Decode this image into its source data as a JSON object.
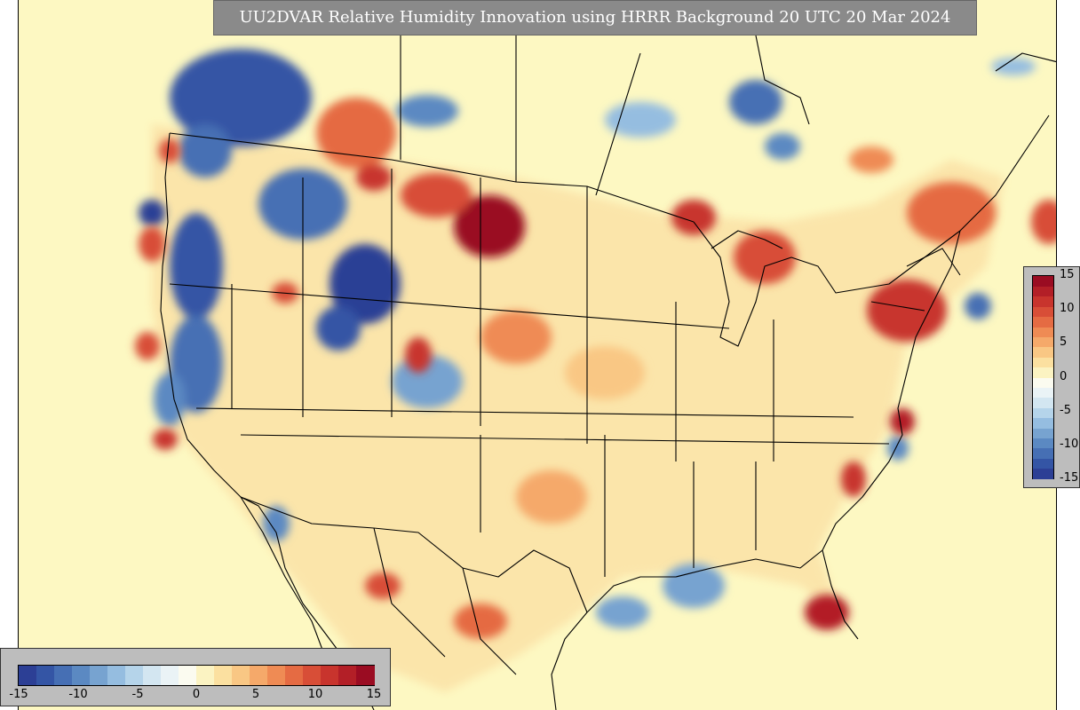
{
  "title": "UU2DVAR Relative Humidity Innovation using HRRR Background 20 UTC 20 Mar 2024",
  "colorbar": {
    "min": -15,
    "max": 15,
    "vertical_ticks": [
      "15",
      "10",
      "5",
      "0",
      "-5",
      "-10",
      "-15"
    ],
    "horizontal_ticks": [
      "-15",
      "-10",
      "-5",
      "0",
      "5",
      "10",
      "15"
    ],
    "colors": [
      "#2c3f95",
      "#3455a5",
      "#466fb4",
      "#5b89c2",
      "#77a3d0",
      "#95bde0",
      "#b5d4ea",
      "#d3e6f1",
      "#eaf3f6",
      "#fbfbf0",
      "#fbf3c2",
      "#fbe0a0",
      "#f9c784",
      "#f5a96a",
      "#ef8b54",
      "#e56b43",
      "#d84e37",
      "#c8342d",
      "#b31f27",
      "#9a0c22"
    ]
  },
  "colors": {
    "background_field": "#fdf8c2",
    "positive": "#b31f27",
    "negative": "#2c3f95"
  }
}
